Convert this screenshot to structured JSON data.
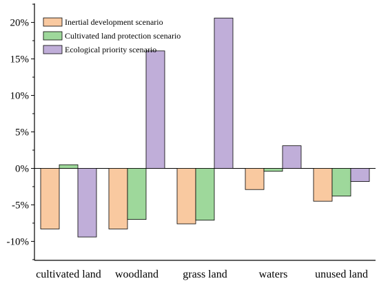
{
  "chart_data": {
    "type": "bar",
    "categories": [
      "cultivated land",
      "woodland",
      "grass land",
      "waters",
      "unused land"
    ],
    "series": [
      {
        "name": "Inertial development scenario",
        "color": "#f9c9a0",
        "values": [
          -8.3,
          -8.3,
          -7.6,
          -2.9,
          -4.5
        ]
      },
      {
        "name": "Cultivated land protection scenario",
        "color": "#9ed89b",
        "values": [
          0.5,
          -7.0,
          -7.1,
          -0.4,
          -3.8
        ]
      },
      {
        "name": "Ecological priority scenario",
        "color": "#c0aed9",
        "values": [
          -9.4,
          16.1,
          20.6,
          3.1,
          -1.8
        ]
      }
    ],
    "y_ticks": [
      -10,
      -5,
      0,
      5,
      10,
      15,
      20
    ],
    "y_tick_labels": [
      "-10%",
      "-5%",
      "0%",
      "5%",
      "10%",
      "15%",
      "20%"
    ],
    "ylim": [
      -12.6,
      22.6
    ],
    "legend_position": "top-left",
    "grid": false
  }
}
